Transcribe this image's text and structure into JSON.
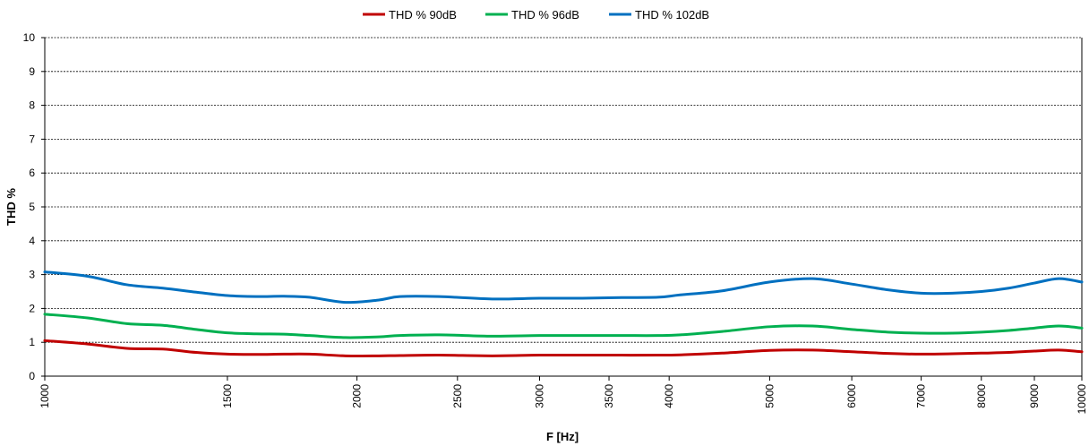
{
  "chart_data": {
    "type": "line",
    "xlabel": "F [Hz]",
    "ylabel": "THD %",
    "x_scale": "log",
    "xlim": [
      1000,
      10000
    ],
    "ylim": [
      0,
      10
    ],
    "y_ticks": [
      0,
      1,
      2,
      3,
      4,
      5,
      6,
      7,
      8,
      9,
      10
    ],
    "x_ticks": [
      1000,
      1500,
      2000,
      2500,
      3000,
      3500,
      4000,
      5000,
      6000,
      7000,
      8000,
      9000,
      10000
    ],
    "x_tick_labels": [
      "1000",
      "1500",
      "2000",
      "2500",
      "3000",
      "3500",
      "4000",
      "5000",
      "6000",
      "7000",
      "8000",
      "9000",
      "10000"
    ],
    "grid": "horizontal dashed",
    "legend_position": "top",
    "x": [
      1000,
      1100,
      1200,
      1300,
      1400,
      1500,
      1600,
      1700,
      1800,
      1950,
      2100,
      2200,
      2400,
      2700,
      3000,
      3300,
      3600,
      3900,
      4100,
      4500,
      5000,
      5500,
      6000,
      6500,
      7000,
      7500,
      8000,
      8500,
      9000,
      9500,
      10000
    ],
    "series": [
      {
        "name": "THD % 90dB",
        "color": "#c00000",
        "values": [
          1.05,
          0.95,
          0.82,
          0.8,
          0.7,
          0.65,
          0.64,
          0.65,
          0.65,
          0.6,
          0.6,
          0.61,
          0.62,
          0.6,
          0.62,
          0.62,
          0.62,
          0.62,
          0.63,
          0.68,
          0.76,
          0.77,
          0.72,
          0.67,
          0.65,
          0.66,
          0.68,
          0.7,
          0.74,
          0.77,
          0.72
        ]
      },
      {
        "name": "THD % 96dB",
        "color": "#00b050",
        "values": [
          1.83,
          1.72,
          1.55,
          1.5,
          1.38,
          1.28,
          1.25,
          1.24,
          1.2,
          1.14,
          1.16,
          1.2,
          1.22,
          1.18,
          1.2,
          1.2,
          1.2,
          1.2,
          1.22,
          1.32,
          1.46,
          1.48,
          1.38,
          1.3,
          1.27,
          1.27,
          1.3,
          1.35,
          1.42,
          1.48,
          1.42
        ]
      },
      {
        "name": "THD % 102dB",
        "color": "#0070c0",
        "values": [
          3.08,
          2.95,
          2.7,
          2.6,
          2.48,
          2.38,
          2.35,
          2.36,
          2.33,
          2.18,
          2.25,
          2.35,
          2.35,
          2.28,
          2.3,
          2.3,
          2.32,
          2.33,
          2.4,
          2.52,
          2.78,
          2.88,
          2.72,
          2.55,
          2.45,
          2.45,
          2.5,
          2.6,
          2.75,
          2.88,
          2.78
        ]
      }
    ]
  }
}
